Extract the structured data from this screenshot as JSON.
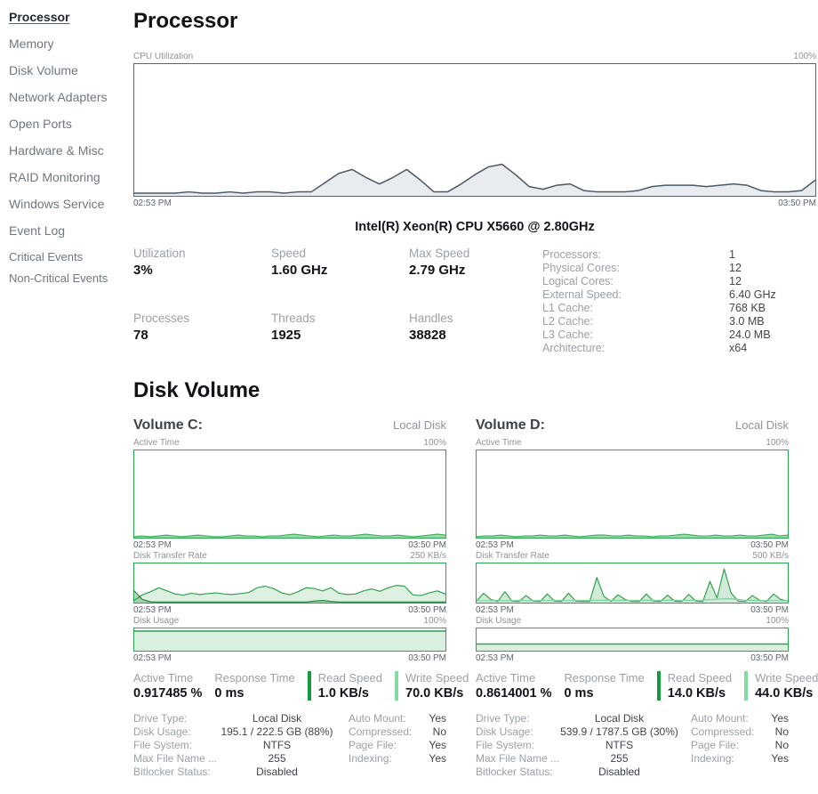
{
  "sidebar": {
    "items": [
      {
        "label": "Processor",
        "active": true
      },
      {
        "label": "Memory"
      },
      {
        "label": "Disk Volume"
      },
      {
        "label": "Network Adapters"
      },
      {
        "label": "Open Ports"
      },
      {
        "label": "Hardware & Misc"
      },
      {
        "label": "RAID Monitoring"
      },
      {
        "label": "Windows Service"
      },
      {
        "label": "Event Log"
      },
      {
        "label": "Critical Events"
      },
      {
        "label": "Non-Critical Events"
      }
    ]
  },
  "processor": {
    "title": "Processor",
    "cpu_name": "Intel(R) Xeon(R) CPU X5660 @ 2.80GHz",
    "stats": [
      {
        "label": "Utilization",
        "value": "3%"
      },
      {
        "label": "Speed",
        "value": "1.60 GHz"
      },
      {
        "label": "Max Speed",
        "value": "2.79 GHz"
      },
      {
        "label": "Processes",
        "value": "78"
      },
      {
        "label": "Threads",
        "value": "1925"
      },
      {
        "label": "Handles",
        "value": "38828"
      }
    ],
    "specs": [
      {
        "label": "Processors:",
        "value": "1"
      },
      {
        "label": "Physical Cores:",
        "value": "12"
      },
      {
        "label": "Logical Cores:",
        "value": "12"
      },
      {
        "label": "External Speed:",
        "value": "6.40 GHz"
      },
      {
        "label": "L1 Cache:",
        "value": "768 KB"
      },
      {
        "label": "L2 Cache:",
        "value": "3.0 MB"
      },
      {
        "label": "L3 Cache:",
        "value": "24.0 MB"
      },
      {
        "label": "Architecture:",
        "value": "x64"
      }
    ]
  },
  "disk": {
    "title": "Disk Volume",
    "volumes": [
      {
        "name": "Volume C:",
        "disk_type": "Local Disk",
        "stats": [
          {
            "label": "Active Time",
            "value": "0.917485 %"
          },
          {
            "label": "Response Time",
            "value": "0 ms"
          },
          {
            "label": "Read Speed",
            "value": "1.0 KB/s"
          },
          {
            "label": "Write Speed",
            "value": "70.0 KB/s"
          }
        ],
        "details_left": [
          {
            "label": "Drive Type:",
            "value": "Local Disk"
          },
          {
            "label": "Disk Usage:",
            "value": "195.1 / 222.5 GB (88%)"
          },
          {
            "label": "File System:",
            "value": "NTFS"
          },
          {
            "label": "Max File Name ...",
            "value": "255"
          },
          {
            "label": "Bitlocker Status:",
            "value": "Disabled"
          }
        ],
        "details_right": [
          {
            "label": "Auto Mount:",
            "value": "Yes"
          },
          {
            "label": "Compressed:",
            "value": "No"
          },
          {
            "label": "Page File:",
            "value": "Yes"
          },
          {
            "label": "Indexing:",
            "value": "Yes"
          }
        ]
      },
      {
        "name": "Volume D:",
        "disk_type": "Local Disk",
        "stats": [
          {
            "label": "Active Time",
            "value": "0.8614001 %"
          },
          {
            "label": "Response Time",
            "value": "0 ms"
          },
          {
            "label": "Read Speed",
            "value": "14.0 KB/s"
          },
          {
            "label": "Write Speed",
            "value": "44.0 KB/s"
          }
        ],
        "details_left": [
          {
            "label": "Drive Type:",
            "value": "Local Disk"
          },
          {
            "label": "Disk Usage:",
            "value": "539.9 / 1787.5 GB (30%)"
          },
          {
            "label": "File System:",
            "value": "NTFS"
          },
          {
            "label": "Max File Name ...",
            "value": "255"
          },
          {
            "label": "Bitlocker Status:",
            "value": "Disabled"
          }
        ],
        "details_right": [
          {
            "label": "Auto Mount:",
            "value": "Yes"
          },
          {
            "label": "Compressed:",
            "value": "No"
          },
          {
            "label": "Page File:",
            "value": "No"
          },
          {
            "label": "Indexing:",
            "value": "Yes"
          }
        ]
      }
    ]
  },
  "colors": {
    "accent_green": "#2aa44e",
    "read_bar": "#169c3e",
    "write_bar": "#82dba0",
    "cpu_line": "#4b5865",
    "cpu_fill": "#e9ecef"
  },
  "chart_data": {
    "cpu_utilization": {
      "type": "area",
      "title": "CPU Utilization",
      "ylim": [
        0,
        100
      ],
      "y_max_label": "100%",
      "x_start": "02:53 PM",
      "x_end": "03:50 PM",
      "series": [
        {
          "name": "cpu_percent",
          "color": "#4b5865",
          "fill": "#e9ecef",
          "width": 1.5,
          "values": [
            2,
            2,
            2,
            2,
            3,
            2,
            2,
            3,
            2,
            3,
            3,
            2,
            3,
            3,
            10,
            17,
            20,
            14,
            9,
            14,
            20,
            12,
            3,
            3,
            9,
            16,
            22,
            24,
            16,
            7,
            5,
            8,
            9,
            4,
            3,
            3,
            3,
            4,
            7,
            8,
            8,
            8,
            7,
            8,
            9,
            8,
            4,
            3,
            3,
            4,
            12
          ]
        }
      ]
    },
    "vol_c_active_time": {
      "type": "area",
      "title": "Active Time",
      "ylim": [
        0,
        100
      ],
      "y_max_label": "100%",
      "x_start": "02:53 PM",
      "x_end": "03:50 PM",
      "series": [
        {
          "name": "active_percent",
          "color": "#3fae5e",
          "fill": "rgba(63,174,94,0.5)",
          "width": 1.2,
          "values": [
            1,
            2,
            1,
            2,
            3,
            2,
            1,
            2,
            3,
            2,
            1,
            1,
            2,
            3,
            2,
            2,
            1,
            2,
            2,
            3,
            4,
            3,
            2,
            1,
            2,
            3,
            2,
            2,
            3,
            4,
            3,
            2,
            2,
            3,
            2,
            1,
            2,
            3,
            4,
            3
          ]
        }
      ]
    },
    "vol_c_transfer_rate": {
      "type": "area",
      "title": "Disk Transfer Rate",
      "ylim": [
        0,
        250
      ],
      "y_max_label": "250 KB/s",
      "x_start": "02:53 PM",
      "x_end": "03:50 PM",
      "series": [
        {
          "name": "write_kbps",
          "color": "#31a24c",
          "fill": "rgba(49,162,76,0.16)",
          "width": 1.2,
          "values": [
            15,
            50,
            70,
            95,
            75,
            55,
            48,
            60,
            52,
            58,
            62,
            55,
            52,
            58,
            65,
            95,
            105,
            90,
            62,
            50,
            70,
            95,
            90,
            75,
            95,
            60,
            52,
            55,
            75,
            88,
            72,
            95,
            110,
            105,
            50,
            45,
            62,
            75,
            55
          ]
        },
        {
          "name": "read_kbps",
          "color": "#1a8a3b",
          "fill": "rgba(26,138,59,0.3)",
          "width": 1.2,
          "values": [
            75,
            20,
            5,
            4,
            4,
            4,
            4,
            4,
            4,
            4,
            4,
            4,
            4,
            4,
            4,
            4,
            4,
            4,
            4,
            4,
            4,
            4,
            10,
            14,
            8,
            4,
            4,
            4,
            4,
            4,
            4,
            4,
            4,
            4,
            4,
            4,
            4,
            4,
            4
          ]
        }
      ]
    },
    "vol_c_disk_usage": {
      "type": "area",
      "title": "Disk Usage",
      "ylim": [
        0,
        100
      ],
      "y_max_label": "100%",
      "x_start": "02:53 PM",
      "x_end": "03:50 PM",
      "series": [
        {
          "name": "usage_percent",
          "color": "#2aa44e",
          "fill": "rgba(42,164,78,0.18)",
          "width": 1.4,
          "values": [
            88,
            88
          ]
        }
      ]
    },
    "vol_d_active_time": {
      "type": "area",
      "title": "Active Time",
      "ylim": [
        0,
        100
      ],
      "y_max_label": "100%",
      "x_start": "02:53 PM",
      "x_end": "03:50 PM",
      "series": [
        {
          "name": "active_percent",
          "color": "#3fae5e",
          "fill": "rgba(63,174,94,0.5)",
          "width": 1.2,
          "values": [
            1,
            2,
            2,
            3,
            2,
            1,
            2,
            2,
            3,
            2,
            2,
            3,
            2,
            1,
            2,
            3,
            3,
            2,
            2,
            3,
            2,
            2,
            1,
            2,
            2,
            3,
            4,
            3,
            2,
            2,
            3,
            2,
            2,
            3,
            2,
            2,
            3,
            4,
            2,
            3
          ]
        }
      ]
    },
    "vol_d_transfer_rate": {
      "type": "area",
      "title": "Disk Transfer Rate",
      "ylim": [
        0,
        500
      ],
      "y_max_label": "500 KB/s",
      "x_start": "02:53 PM",
      "x_end": "03:50 PM",
      "series": [
        {
          "name": "write_kbps",
          "color": "#31a24c",
          "fill": "rgba(49,162,76,0.22)",
          "width": 1.2,
          "values": [
            20,
            120,
            40,
            15,
            140,
            20,
            15,
            90,
            20,
            15,
            110,
            20,
            15,
            120,
            20,
            15,
            15,
            320,
            80,
            15,
            100,
            40,
            15,
            15,
            110,
            20,
            15,
            95,
            20,
            15,
            105,
            20,
            15,
            270,
            60,
            430,
            120,
            20,
            15,
            90,
            30,
            15,
            110,
            40,
            20
          ]
        },
        {
          "name": "read_kbps",
          "color": "#7cd49a",
          "fill": "none",
          "width": 1.2,
          "values": [
            25,
            25,
            25,
            28,
            25,
            25,
            28,
            25,
            25,
            28,
            25,
            28,
            28,
            25,
            28,
            28,
            28,
            30,
            30,
            28,
            28,
            30,
            28,
            28,
            30,
            28,
            28,
            30,
            30,
            28,
            30,
            30,
            32,
            38,
            45,
            50,
            48,
            40,
            32,
            28,
            25,
            25,
            25,
            25,
            25
          ]
        }
      ]
    },
    "vol_d_disk_usage": {
      "type": "area",
      "title": "Disk Usage",
      "ylim": [
        0,
        100
      ],
      "y_max_label": "100%",
      "x_start": "02:53 PM",
      "x_end": "03:50 PM",
      "series": [
        {
          "name": "usage_percent",
          "color": "#2aa44e",
          "fill": "rgba(42,164,78,0.18)",
          "width": 1.4,
          "values": [
            30,
            30
          ]
        }
      ]
    }
  }
}
